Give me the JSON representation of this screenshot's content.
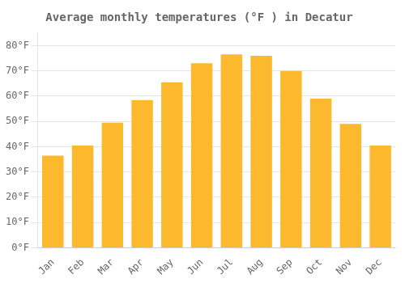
{
  "chart_data": {
    "type": "bar",
    "title": "Average monthly temperatures (°F ) in Decatur",
    "categories": [
      "Jan",
      "Feb",
      "Mar",
      "Apr",
      "May",
      "Jun",
      "Jul",
      "Aug",
      "Sep",
      "Oct",
      "Nov",
      "Dec"
    ],
    "values": [
      36.5,
      40.5,
      49.5,
      58.5,
      65.5,
      73.0,
      76.5,
      76.0,
      70.0,
      59.0,
      49.0,
      40.5
    ],
    "color": "#FDB92E",
    "ylim": [
      0,
      85
    ],
    "yticks": [
      {
        "value": 0,
        "label": "0°F"
      },
      {
        "value": 10,
        "label": "10°F"
      },
      {
        "value": 20,
        "label": "20°F"
      },
      {
        "value": 30,
        "label": "30°F"
      },
      {
        "value": 40,
        "label": "40°F"
      },
      {
        "value": 50,
        "label": "50°F"
      },
      {
        "value": 60,
        "label": "60°F"
      },
      {
        "value": 70,
        "label": "70°F"
      },
      {
        "value": 80,
        "label": "80°F"
      }
    ],
    "grid": true
  }
}
